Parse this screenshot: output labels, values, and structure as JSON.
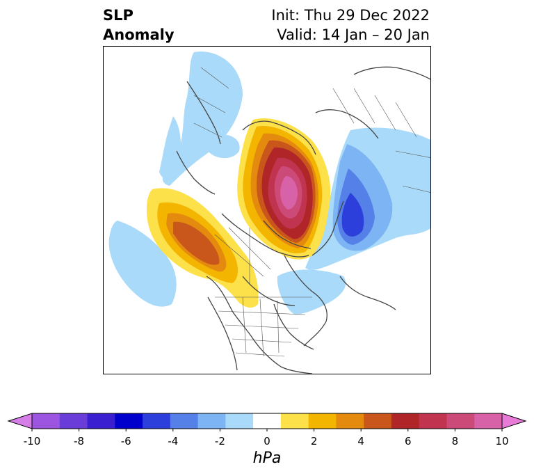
{
  "title": {
    "line1": "SLP",
    "line2": "Anomaly",
    "init": "Init: Thu 29 Dec 2022",
    "valid": "Valid: 14 Jan – 20 Jan"
  },
  "colorbar": {
    "unit": "hPa",
    "min": -10,
    "max": 10,
    "extend": "both",
    "tick_labels": [
      "-10",
      "-8",
      "-6",
      "-4",
      "-2",
      "0",
      "2",
      "4",
      "6",
      "8",
      "10"
    ],
    "colors": [
      "#d57ee8",
      "#9b55e0",
      "#6a3cd8",
      "#3a1fd0",
      "#0000cd",
      "#2d3fdb",
      "#5580e8",
      "#7db4f3",
      "#aadaf9",
      "#ffffff",
      "#fde14a",
      "#f4b500",
      "#e48a0f",
      "#c9571c",
      "#b02527",
      "#c13450",
      "#cc4a78",
      "#d862a8",
      "#e87ad8"
    ]
  },
  "map": {
    "projection": "north-polar-stereographic",
    "features": [
      "positive-anomaly-arctic",
      "positive-anomaly-north-pacific",
      "negative-anomaly-siberia",
      "negative-anomaly-europe",
      "negative-anomaly-east-pacific",
      "negative-anomaly-north-atlantic"
    ]
  }
}
